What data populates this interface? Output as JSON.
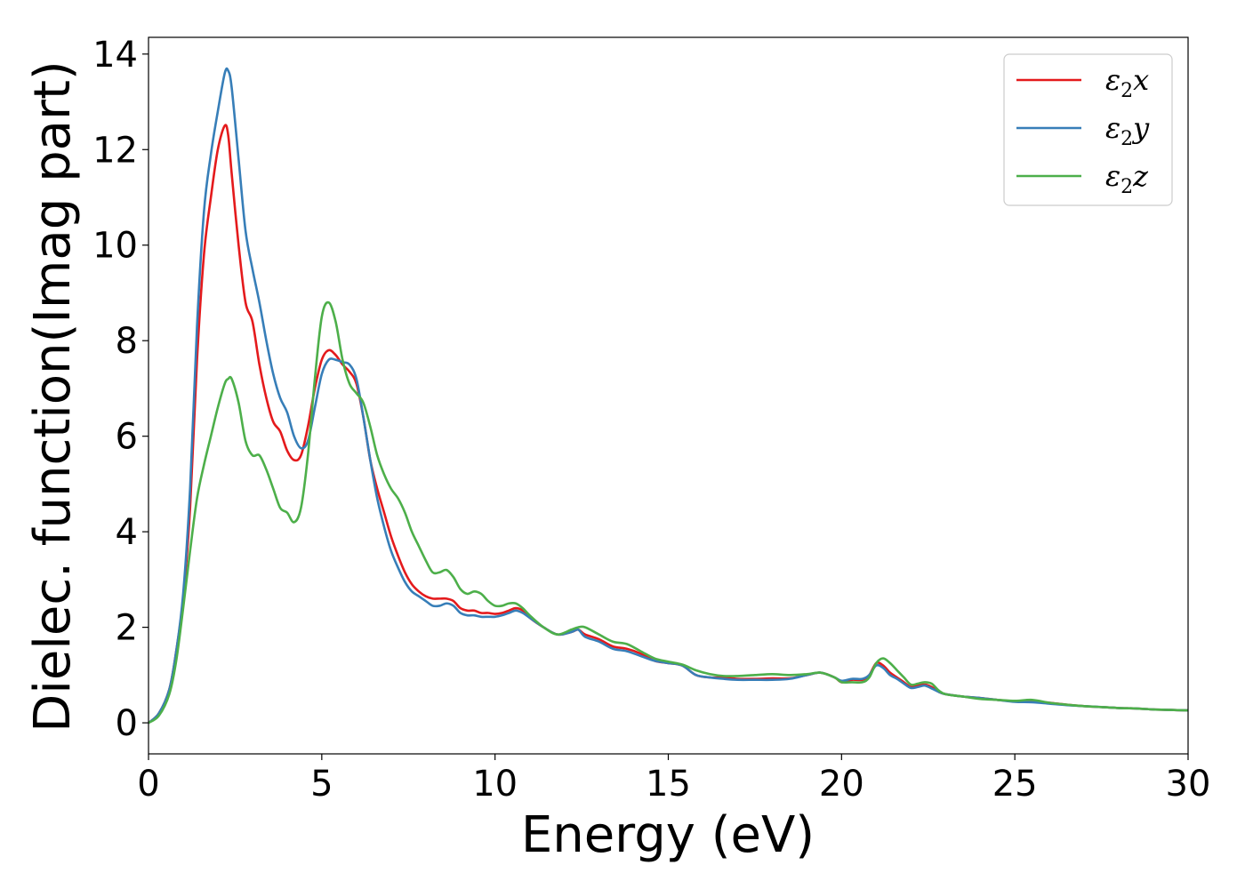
{
  "chart_data": {
    "type": "line",
    "xlabel": "Energy (eV)",
    "ylabel": "Dielec. function(Imag part)",
    "xlim": [
      0,
      30
    ],
    "ylim": [
      -0.65,
      14.35
    ],
    "xticks": [
      0,
      5,
      10,
      15,
      20,
      25,
      30
    ],
    "yticks": [
      0,
      2,
      4,
      6,
      8,
      10,
      12,
      14
    ],
    "grid": false,
    "legend_position": "top-right",
    "series": [
      {
        "name": "ε2x",
        "legend": {
          "base": "ε",
          "sub": "2",
          "suffix": "x"
        },
        "color": "#e41a1c",
        "x": [
          0,
          0.3,
          0.6,
          0.8,
          1.0,
          1.2,
          1.4,
          1.6,
          1.8,
          2.0,
          2.2,
          2.3,
          2.4,
          2.6,
          2.8,
          3.0,
          3.2,
          3.4,
          3.6,
          3.8,
          4.0,
          4.2,
          4.4,
          4.6,
          4.8,
          5.0,
          5.2,
          5.4,
          5.6,
          5.8,
          6.0,
          6.2,
          6.4,
          6.6,
          6.8,
          7.0,
          7.2,
          7.4,
          7.6,
          7.8,
          8.0,
          8.2,
          8.4,
          8.6,
          8.8,
          9.0,
          9.2,
          9.4,
          9.6,
          9.8,
          10.0,
          10.2,
          10.4,
          10.6,
          10.8,
          11.0,
          11.4,
          11.8,
          12.2,
          12.4,
          12.6,
          13.0,
          13.4,
          13.8,
          14.2,
          14.6,
          15.0,
          15.4,
          15.8,
          16.2,
          16.6,
          17.0,
          17.5,
          18.0,
          18.5,
          19.0,
          19.4,
          19.8,
          20.0,
          20.3,
          20.6,
          20.8,
          21.0,
          21.2,
          21.4,
          21.6,
          21.8,
          22.0,
          22.2,
          22.4,
          22.6,
          22.8,
          23.0,
          23.5,
          24.0,
          24.5,
          25.0,
          25.5,
          26.0,
          26.5,
          27.0,
          27.5,
          28.0,
          28.5,
          29.0,
          29.5,
          30.0
        ],
        "y": [
          0.0,
          0.2,
          0.7,
          1.5,
          2.6,
          4.5,
          7.6,
          9.8,
          11.0,
          12.0,
          12.5,
          12.3,
          11.5,
          10.0,
          8.8,
          8.4,
          7.5,
          6.8,
          6.3,
          6.1,
          5.7,
          5.5,
          5.6,
          6.2,
          7.0,
          7.6,
          7.8,
          7.7,
          7.5,
          7.35,
          7.1,
          6.4,
          5.5,
          4.9,
          4.4,
          3.9,
          3.5,
          3.15,
          2.9,
          2.75,
          2.65,
          2.6,
          2.6,
          2.6,
          2.55,
          2.4,
          2.35,
          2.35,
          2.3,
          2.3,
          2.28,
          2.3,
          2.35,
          2.4,
          2.35,
          2.2,
          2.0,
          1.85,
          1.9,
          1.95,
          1.85,
          1.75,
          1.6,
          1.55,
          1.45,
          1.3,
          1.25,
          1.2,
          1.0,
          0.95,
          0.95,
          0.92,
          0.92,
          0.93,
          0.93,
          1.0,
          1.05,
          0.95,
          0.85,
          0.9,
          0.9,
          1.0,
          1.25,
          1.2,
          1.05,
          0.95,
          0.85,
          0.75,
          0.78,
          0.8,
          0.75,
          0.65,
          0.6,
          0.55,
          0.52,
          0.48,
          0.45,
          0.45,
          0.42,
          0.38,
          0.35,
          0.33,
          0.31,
          0.3,
          0.28,
          0.27,
          0.26
        ]
      },
      {
        "name": "ε2y",
        "legend": {
          "base": "ε",
          "sub": "2",
          "suffix": "y"
        },
        "color": "#377eb8",
        "x": [
          0,
          0.3,
          0.6,
          0.8,
          1.0,
          1.2,
          1.4,
          1.6,
          1.8,
          2.0,
          2.2,
          2.3,
          2.4,
          2.6,
          2.8,
          3.0,
          3.2,
          3.4,
          3.6,
          3.8,
          4.0,
          4.2,
          4.4,
          4.6,
          4.8,
          5.0,
          5.2,
          5.4,
          5.6,
          5.8,
          6.0,
          6.2,
          6.4,
          6.6,
          6.8,
          7.0,
          7.2,
          7.4,
          7.6,
          7.8,
          8.0,
          8.2,
          8.4,
          8.6,
          8.8,
          9.0,
          9.2,
          9.4,
          9.6,
          9.8,
          10.0,
          10.2,
          10.4,
          10.6,
          10.8,
          11.0,
          11.4,
          11.8,
          12.2,
          12.4,
          12.6,
          13.0,
          13.4,
          13.8,
          14.2,
          14.6,
          15.0,
          15.4,
          15.8,
          16.2,
          16.6,
          17.0,
          17.5,
          18.0,
          18.5,
          19.0,
          19.4,
          19.8,
          20.0,
          20.3,
          20.6,
          20.8,
          21.0,
          21.2,
          21.4,
          21.6,
          21.8,
          22.0,
          22.2,
          22.4,
          22.6,
          22.8,
          23.0,
          23.5,
          24.0,
          24.5,
          25.0,
          25.5,
          26.0,
          26.5,
          27.0,
          27.5,
          28.0,
          28.5,
          29.0,
          29.5,
          30.0
        ],
        "y": [
          0.0,
          0.2,
          0.7,
          1.5,
          2.7,
          4.9,
          8.3,
          10.7,
          11.9,
          12.8,
          13.6,
          13.65,
          13.3,
          11.8,
          10.3,
          9.5,
          8.8,
          8.0,
          7.3,
          6.8,
          6.5,
          6.0,
          5.75,
          5.9,
          6.6,
          7.3,
          7.6,
          7.6,
          7.55,
          7.5,
          7.2,
          6.4,
          5.5,
          4.7,
          4.1,
          3.6,
          3.25,
          2.95,
          2.75,
          2.65,
          2.55,
          2.45,
          2.45,
          2.5,
          2.45,
          2.3,
          2.25,
          2.25,
          2.22,
          2.22,
          2.22,
          2.25,
          2.3,
          2.35,
          2.3,
          2.2,
          2.0,
          1.85,
          1.9,
          1.95,
          1.8,
          1.7,
          1.55,
          1.5,
          1.4,
          1.3,
          1.25,
          1.2,
          1.0,
          0.95,
          0.92,
          0.9,
          0.9,
          0.9,
          0.92,
          1.0,
          1.05,
          0.95,
          0.88,
          0.92,
          0.92,
          1.0,
          1.2,
          1.15,
          1.0,
          0.92,
          0.82,
          0.73,
          0.75,
          0.78,
          0.72,
          0.65,
          0.6,
          0.55,
          0.52,
          0.48,
          0.44,
          0.43,
          0.4,
          0.37,
          0.35,
          0.33,
          0.31,
          0.3,
          0.28,
          0.27,
          0.26
        ]
      },
      {
        "name": "ε2z",
        "legend": {
          "base": "ε",
          "sub": "2",
          "suffix": "z"
        },
        "color": "#4daf4a",
        "x": [
          0,
          0.3,
          0.6,
          0.8,
          1.0,
          1.2,
          1.4,
          1.6,
          1.8,
          2.0,
          2.2,
          2.3,
          2.4,
          2.6,
          2.8,
          3.0,
          3.2,
          3.4,
          3.6,
          3.8,
          4.0,
          4.2,
          4.4,
          4.6,
          4.8,
          5.0,
          5.2,
          5.4,
          5.6,
          5.8,
          6.0,
          6.2,
          6.4,
          6.6,
          6.8,
          7.0,
          7.2,
          7.4,
          7.6,
          7.8,
          8.0,
          8.2,
          8.4,
          8.6,
          8.8,
          9.0,
          9.2,
          9.4,
          9.6,
          9.8,
          10.0,
          10.2,
          10.4,
          10.6,
          10.8,
          11.0,
          11.4,
          11.8,
          12.2,
          12.4,
          12.6,
          13.0,
          13.4,
          13.8,
          14.2,
          14.6,
          15.0,
          15.4,
          15.8,
          16.2,
          16.6,
          17.0,
          17.5,
          18.0,
          18.5,
          19.0,
          19.4,
          19.8,
          20.0,
          20.3,
          20.6,
          20.8,
          21.0,
          21.2,
          21.4,
          21.6,
          21.8,
          22.0,
          22.2,
          22.4,
          22.6,
          22.8,
          23.0,
          23.5,
          24.0,
          24.5,
          25.0,
          25.5,
          26.0,
          26.5,
          27.0,
          27.5,
          28.0,
          28.5,
          29.0,
          29.5,
          30.0
        ],
        "y": [
          0.0,
          0.15,
          0.6,
          1.3,
          2.4,
          3.6,
          4.7,
          5.4,
          6.0,
          6.6,
          7.1,
          7.2,
          7.2,
          6.7,
          5.9,
          5.6,
          5.6,
          5.3,
          4.9,
          4.5,
          4.4,
          4.2,
          4.5,
          5.6,
          7.2,
          8.5,
          8.8,
          8.4,
          7.6,
          7.1,
          6.9,
          6.7,
          6.2,
          5.6,
          5.2,
          4.9,
          4.7,
          4.4,
          4.0,
          3.7,
          3.4,
          3.15,
          3.15,
          3.2,
          3.05,
          2.8,
          2.7,
          2.75,
          2.7,
          2.55,
          2.45,
          2.45,
          2.5,
          2.5,
          2.4,
          2.25,
          2.0,
          1.85,
          1.95,
          2.0,
          2.0,
          1.85,
          1.7,
          1.65,
          1.5,
          1.35,
          1.28,
          1.22,
          1.1,
          1.02,
          0.98,
          0.98,
          1.0,
          1.02,
          1.0,
          1.02,
          1.05,
          0.95,
          0.85,
          0.85,
          0.85,
          0.95,
          1.25,
          1.35,
          1.25,
          1.1,
          0.95,
          0.8,
          0.82,
          0.85,
          0.82,
          0.68,
          0.6,
          0.55,
          0.5,
          0.48,
          0.46,
          0.48,
          0.42,
          0.38,
          0.35,
          0.33,
          0.31,
          0.3,
          0.28,
          0.27,
          0.26
        ]
      }
    ]
  }
}
